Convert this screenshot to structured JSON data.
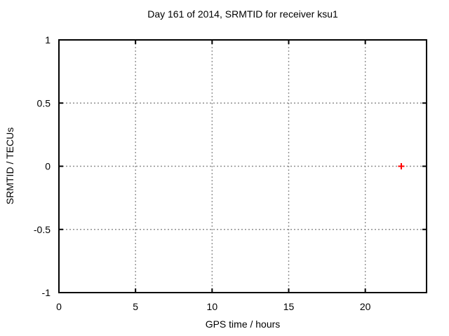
{
  "window": {
    "background": "#ffffff"
  },
  "chart_data": {
    "type": "scatter",
    "title": "Day 161 of 2014, SRMTID for receiver ksu1",
    "xlabel": "GPS time / hours",
    "ylabel": "SRMTID / TECUs",
    "xlim": [
      0,
      24
    ],
    "ylim": [
      -1,
      1
    ],
    "xticks": [
      0,
      5,
      10,
      15,
      20
    ],
    "xtick_labels": [
      "0",
      "5",
      "10",
      "15",
      "20"
    ],
    "yticks": [
      1,
      0.5,
      0,
      -0.5,
      -1
    ],
    "ytick_labels": [
      "1",
      "0.5",
      "0",
      "-0.5",
      "-1"
    ],
    "grid": true,
    "legend_position": "none",
    "series": [
      {
        "marker": "plus",
        "color": "#ff0000",
        "points": [
          [
            22.35,
            0
          ]
        ]
      }
    ],
    "colors": {
      "border": "#000000",
      "grid": "#909090",
      "text": "#000000",
      "background": "#ffffff"
    }
  }
}
